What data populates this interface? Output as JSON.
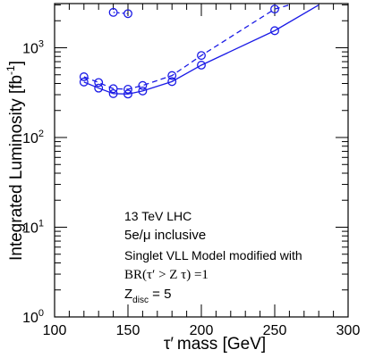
{
  "chart_data": {
    "type": "line",
    "xlabel_prefix": "τ′",
    "xlabel_suffix": "mass  [GeV]",
    "ylabel_main": "Integrated Luminosity [fb",
    "ylabel_exp": "-1",
    "ylabel_close": "]",
    "xlim": [
      100,
      300
    ],
    "ylim": [
      1,
      3000
    ],
    "yscale": "log",
    "x_ticks": [
      "100",
      "150",
      "200",
      "250",
      "300"
    ],
    "y_ticks": [
      {
        "base": "10",
        "exp": "0"
      },
      {
        "base": "10",
        "exp": "1"
      },
      {
        "base": "10",
        "exp": "2"
      },
      {
        "base": "10",
        "exp": "3"
      }
    ],
    "series": [
      {
        "style": "solid",
        "color": "#1a1ae6",
        "x": [
          120,
          130,
          140,
          150,
          160,
          180,
          200,
          250
        ],
        "y": [
          415,
          355,
          308,
          305,
          330,
          420,
          640,
          1550
        ],
        "line_extends_to": [
          280,
          3000
        ]
      },
      {
        "style": "dashed",
        "color": "#1a1ae6",
        "x": [
          120,
          130,
          140,
          150,
          160,
          180,
          200,
          250
        ],
        "y": [
          475,
          410,
          350,
          345,
          380,
          490,
          820,
          2700
        ],
        "line_extends_to": [
          260,
          3000
        ]
      },
      {
        "style": "dotted",
        "color": "#1a1ae6",
        "x": [
          140,
          150
        ],
        "y": [
          2480,
          2400
        ]
      }
    ]
  },
  "annotations": {
    "line1": "13 TeV LHC",
    "line2": "5e/μ inclusive",
    "line3": "Singlet VLL Model modified with",
    "line4_prefix": "BR(τ′ > Z τ) =1",
    "line5_base": "Z",
    "line5_sub": "disc",
    "line5_suffix": " = 5"
  }
}
